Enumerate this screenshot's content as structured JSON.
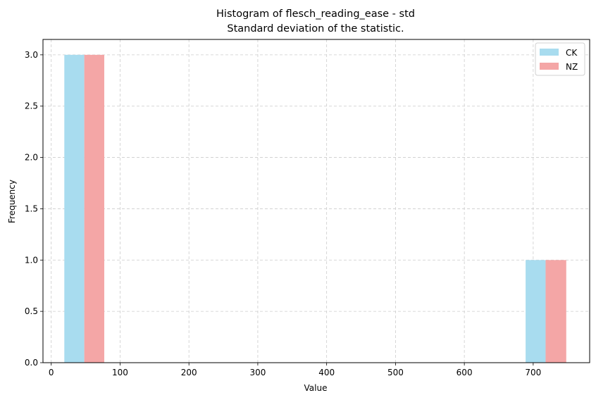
{
  "chart_data": {
    "type": "bar",
    "title": "Histogram of flesch_reading_ease - std",
    "subtitle": "Standard deviation of the statistic.",
    "xlabel": "Value",
    "ylabel": "Frequency",
    "xlim": [
      -12,
      782
    ],
    "ylim": [
      0,
      3.15
    ],
    "x_ticks": [
      0,
      100,
      200,
      300,
      400,
      500,
      600,
      700
    ],
    "y_ticks": [
      0.0,
      0.5,
      1.0,
      1.5,
      2.0,
      2.5,
      3.0
    ],
    "y_tick_labels": [
      "0.0",
      "0.5",
      "1.0",
      "1.5",
      "2.0",
      "2.5",
      "3.0"
    ],
    "grid": true,
    "legend_position": "top-right",
    "series": [
      {
        "name": "CK",
        "color": "#a8dcef",
        "bars": [
          {
            "x0": 19,
            "x1": 48,
            "value": 3
          },
          {
            "x0": 689,
            "x1": 718,
            "value": 1
          }
        ]
      },
      {
        "name": "NZ",
        "color": "#f4a6a6",
        "bars": [
          {
            "x0": 48,
            "x1": 77,
            "value": 3
          },
          {
            "x0": 718,
            "x1": 748,
            "value": 1
          }
        ]
      }
    ]
  }
}
